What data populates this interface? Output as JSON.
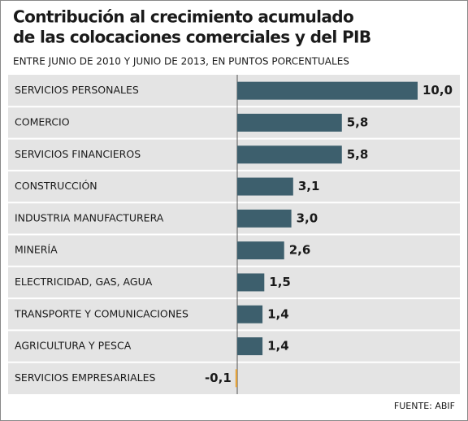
{
  "chart_data": {
    "type": "barh",
    "title": [
      "Contribución al crecimiento acumulado",
      "de las colocaciones comerciales y del PIB"
    ],
    "subtitle": "ENTRE JUNIO DE 2010 Y JUNIO DE 2013, EN PUNTOS PORCENTUALES",
    "categories": [
      "SERVICIOS PERSONALES",
      "COMERCIO",
      "SERVICIOS FINANCIEROS",
      "CONSTRUCCIÓN",
      "INDUSTRIA MANUFACTURERA",
      "MINERÍA",
      "ELECTRICIDAD, GAS, AGUA",
      "TRANSPORTE Y COMUNICACIONES",
      "AGRICULTURA Y PESCA",
      "SERVICIOS EMPRESARIALES"
    ],
    "values": [
      10.0,
      5.8,
      5.8,
      3.1,
      3.0,
      2.6,
      1.5,
      1.4,
      1.4,
      -0.1
    ],
    "value_labels": [
      "10,0",
      "5,8",
      "5,8",
      "3,1",
      "3,0",
      "2,6",
      "1,5",
      "1,4",
      "1,4",
      "-0,1"
    ],
    "color": "#3d5f6d",
    "negative_color": "#e3a23a",
    "source": "FUENTE: ABIF"
  }
}
